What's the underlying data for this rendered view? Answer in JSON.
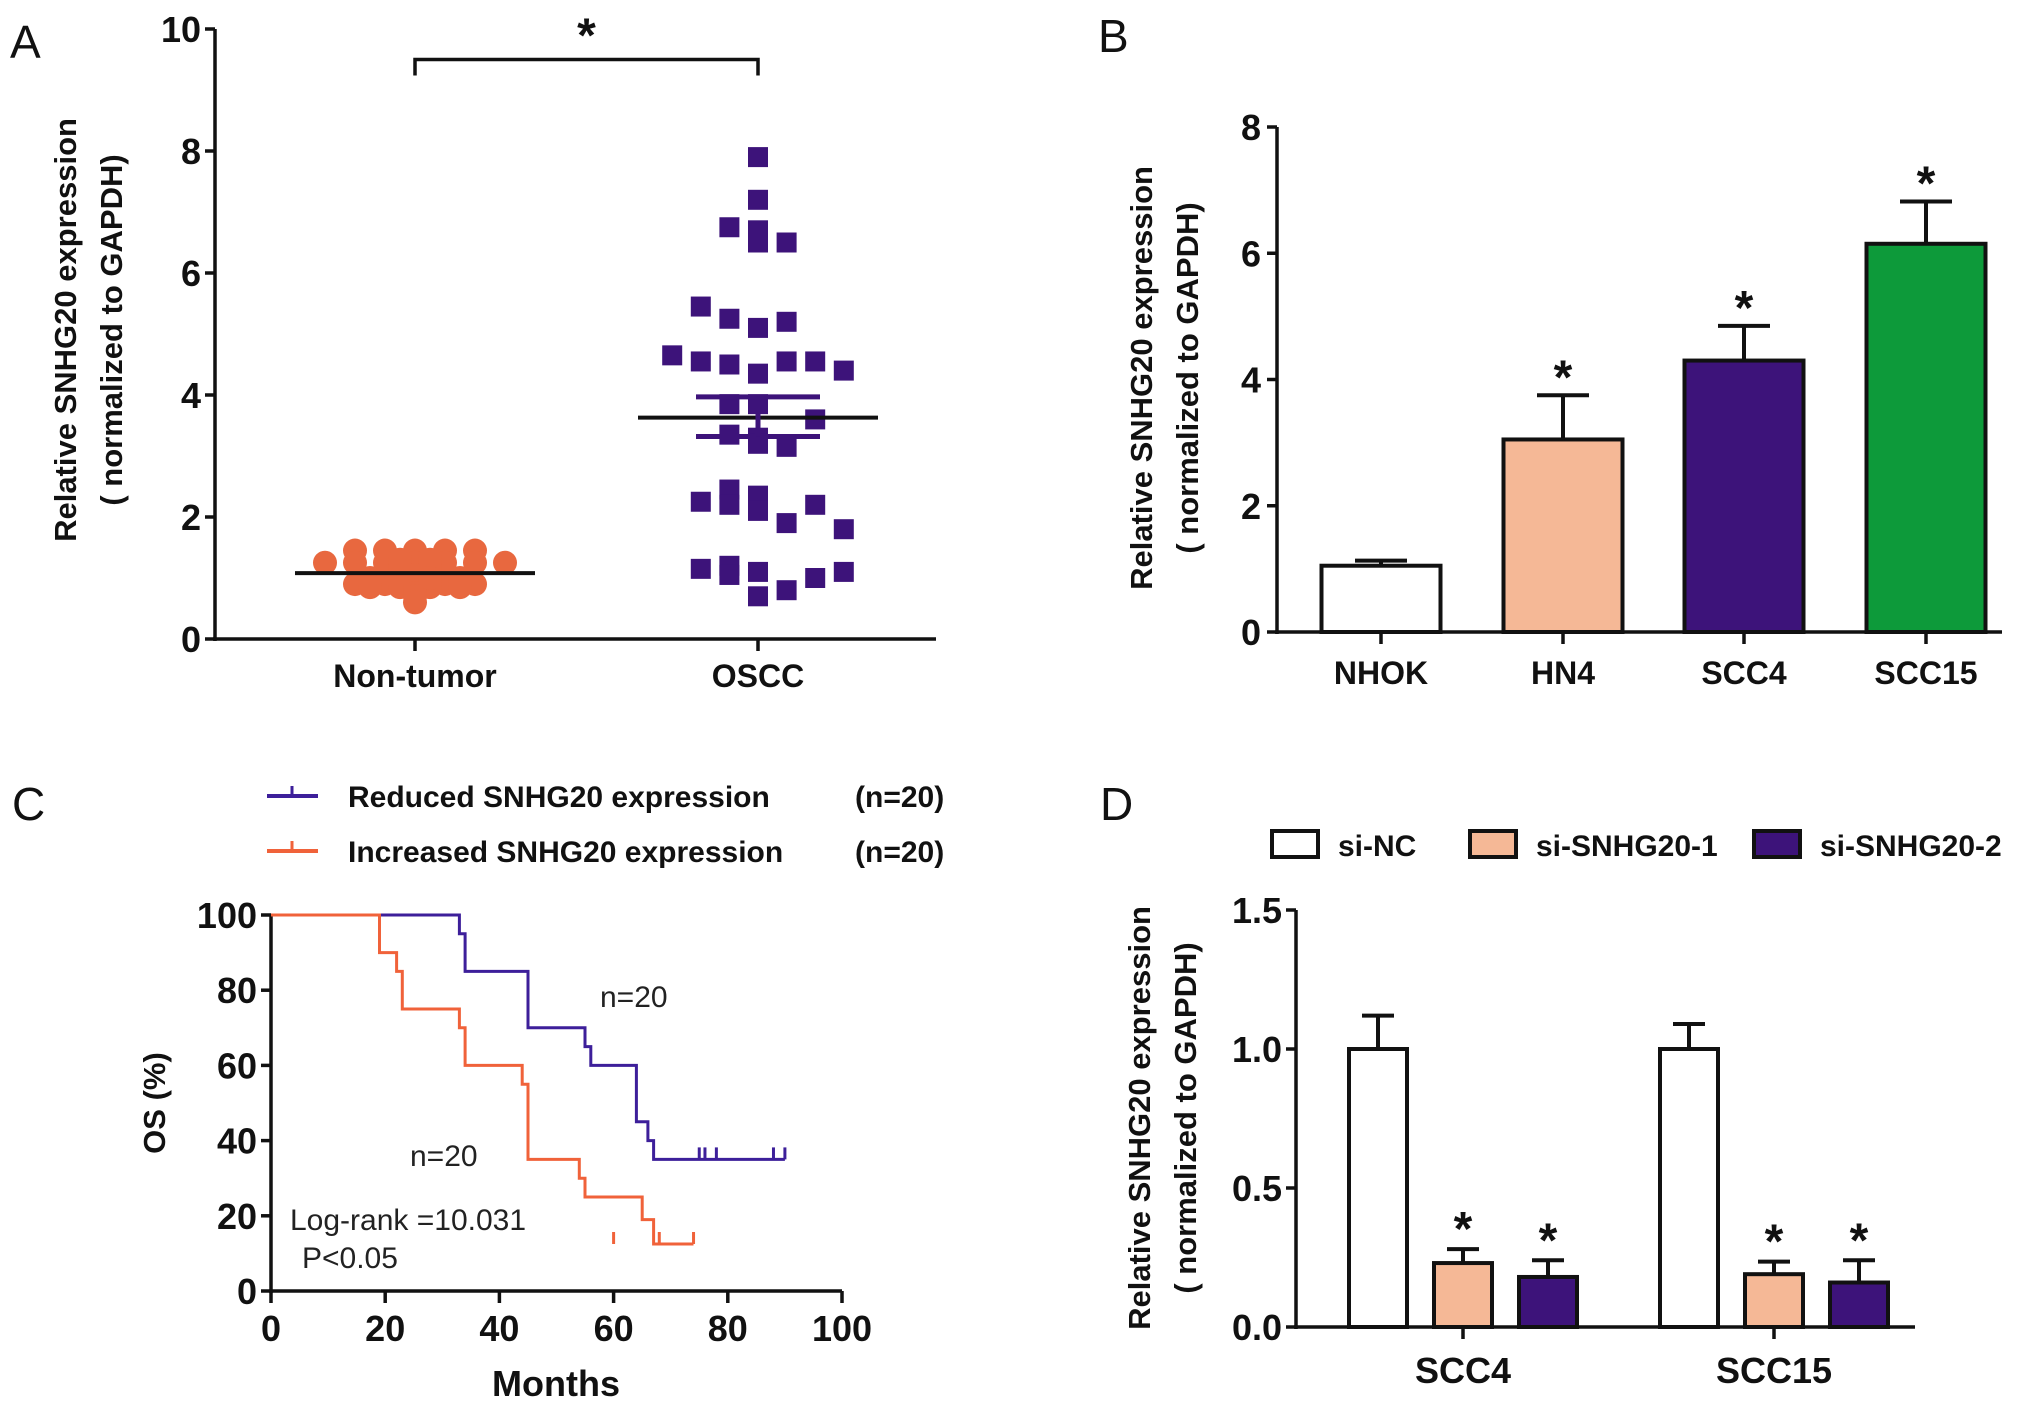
{
  "chart_data": [
    {
      "panel": "A",
      "type": "scatter",
      "title": "",
      "xlabel": "",
      "ylabel": "Relative SNHG20 expression",
      "ylabel2": "( normalized to GAPDH)",
      "ylim": [
        0,
        10
      ],
      "yticks": [
        "0",
        "2",
        "4",
        "6",
        "8",
        "10"
      ],
      "categories": [
        "Non-tumor",
        "OSCC"
      ],
      "colors": [
        "#e8683f",
        "#3d137a"
      ],
      "significance": "*",
      "series": [
        {
          "name": "Non-tumor",
          "marker": "circle",
          "mean": 1.08,
          "values": [
            1.45,
            1.45,
            1.45,
            1.45,
            1.45,
            1.25,
            1.25,
            1.25,
            1.25,
            1.25,
            1.25,
            1.25,
            1.2,
            1.2,
            1.15,
            1.15,
            1.1,
            1.1,
            1.05,
            1.0,
            1.0,
            0.95,
            0.95,
            0.9,
            0.9,
            0.9,
            0.9,
            0.85,
            0.85,
            0.85,
            0.8,
            0.75,
            0.7,
            0.6,
            1.3,
            1.3,
            1.0,
            1.0,
            0.9,
            0.85
          ]
        },
        {
          "name": "OSCC",
          "marker": "square",
          "mean": 3.63,
          "sem_upper": 3.97,
          "sem_lower": 3.32,
          "values": [
            7.9,
            7.2,
            6.75,
            6.7,
            6.5,
            6.5,
            5.45,
            5.25,
            5.2,
            5.1,
            4.65,
            4.55,
            4.5,
            4.35,
            4.55,
            4.55,
            4.4,
            3.85,
            3.85,
            3.6,
            3.35,
            3.3,
            3.2,
            3.15,
            2.45,
            2.35,
            2.25,
            2.2,
            2.1,
            2.2,
            1.9,
            1.8,
            1.2,
            1.15,
            1.1,
            1.05,
            1.0,
            0.8,
            0.7,
            1.1
          ]
        }
      ]
    },
    {
      "panel": "B",
      "type": "bar",
      "title": "",
      "xlabel": "",
      "ylabel": "Relative SNHG20 expression",
      "ylabel2": "( normalized to GAPDH)",
      "ylim": [
        0,
        8
      ],
      "yticks": [
        "0",
        "2",
        "4",
        "6",
        "8"
      ],
      "categories": [
        "NHOK",
        "HN4",
        "SCC4",
        "SCC15"
      ],
      "values": [
        1.05,
        3.05,
        4.3,
        6.15
      ],
      "errors": [
        0.08,
        0.7,
        0.55,
        0.67
      ],
      "significance": [
        "",
        "*",
        "*",
        "*"
      ],
      "colors": [
        "#ffffff",
        "#f5b896",
        "#3d137a",
        "#0d9a3a"
      ]
    },
    {
      "panel": "C",
      "type": "line",
      "title": "",
      "xlabel": "Months",
      "ylabel": "OS (%)",
      "xlim": [
        0,
        100
      ],
      "ylim": [
        0,
        100
      ],
      "xticks": [
        "0",
        "20",
        "40",
        "60",
        "80",
        "100"
      ],
      "yticks": [
        "0",
        "20",
        "40",
        "60",
        "80",
        "100"
      ],
      "legend_position": "top",
      "annotations": [
        "n=20",
        "n=20",
        "Log-rank =10.031",
        "P<0.05"
      ],
      "series": [
        {
          "name": "Reduced SNHG20 expression",
          "n_label": "(n=20)",
          "color": "#3d1f9a",
          "steps": [
            [
              0,
              100
            ],
            [
              33,
              100
            ],
            [
              33,
              95
            ],
            [
              34,
              95
            ],
            [
              34,
              85
            ],
            [
              45,
              85
            ],
            [
              45,
              70
            ],
            [
              55,
              70
            ],
            [
              55,
              65
            ],
            [
              56,
              65
            ],
            [
              56,
              60
            ],
            [
              64,
              60
            ],
            [
              64,
              45
            ],
            [
              66,
              45
            ],
            [
              66,
              40
            ],
            [
              67,
              40
            ],
            [
              67,
              35
            ],
            [
              90,
              35
            ]
          ],
          "censored": [
            75,
            76,
            78,
            88,
            90
          ]
        },
        {
          "name": "Increased SNHG20 expression",
          "n_label": "(n=20)",
          "color": "#f0623a",
          "steps": [
            [
              0,
              100
            ],
            [
              19,
              100
            ],
            [
              19,
              90
            ],
            [
              22,
              90
            ],
            [
              22,
              85
            ],
            [
              23,
              85
            ],
            [
              23,
              75
            ],
            [
              33,
              75
            ],
            [
              33,
              70
            ],
            [
              34,
              70
            ],
            [
              34,
              60
            ],
            [
              44,
              60
            ],
            [
              44,
              55
            ],
            [
              45,
              55
            ],
            [
              45,
              35
            ],
            [
              54,
              35
            ],
            [
              54,
              30
            ],
            [
              55,
              30
            ],
            [
              55,
              25
            ],
            [
              65,
              25
            ],
            [
              65,
              19
            ],
            [
              67,
              19
            ],
            [
              67,
              12.5
            ],
            [
              74,
              12.5
            ]
          ],
          "censored": [
            60,
            68,
            74
          ]
        }
      ]
    },
    {
      "panel": "D",
      "type": "bar",
      "title": "",
      "xlabel": "",
      "ylabel": "Relative SNHG20 expression",
      "ylabel2": "( normalized to GAPDH)",
      "ylim": [
        0,
        1.5
      ],
      "yticks": [
        "0.0",
        "0.5",
        "1.0",
        "1.5"
      ],
      "categories": [
        "SCC4",
        "SCC15"
      ],
      "legend_position": "top",
      "series": [
        {
          "name": "si-NC",
          "color": "#ffffff",
          "values": [
            1.0,
            1.0
          ],
          "errors": [
            0.12,
            0.09
          ],
          "significance": [
            "",
            ""
          ]
        },
        {
          "name": "si-SNHG20-1",
          "color": "#f5b896",
          "values": [
            0.23,
            0.19
          ],
          "errors": [
            0.05,
            0.045
          ],
          "significance": [
            "*",
            "*"
          ]
        },
        {
          "name": "si-SNHG20-2",
          "color": "#3d137a",
          "values": [
            0.18,
            0.16
          ],
          "errors": [
            0.06,
            0.08
          ],
          "significance": [
            "*",
            "*"
          ]
        }
      ]
    }
  ],
  "panels": {
    "A": {
      "letter": "A"
    },
    "B": {
      "letter": "B"
    },
    "C": {
      "letter": "C"
    },
    "D": {
      "letter": "D"
    }
  }
}
